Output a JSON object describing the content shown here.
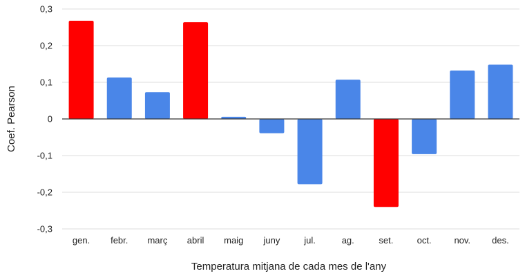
{
  "chart_data": {
    "type": "bar",
    "title": "",
    "xlabel": "Temperatura mitjana de cada mes de l'any",
    "ylabel": "Coef. Pearson",
    "categories": [
      "gen.",
      "febr.",
      "març",
      "abril",
      "maig",
      "juny",
      "jul.",
      "ag.",
      "set.",
      "oct.",
      "nov.",
      "des."
    ],
    "values": [
      0.268,
      0.113,
      0.073,
      0.264,
      0.006,
      -0.039,
      -0.178,
      0.107,
      -0.24,
      -0.096,
      0.132,
      0.148
    ],
    "bar_colors": [
      "#ff0000",
      "#4a86e8",
      "#4a86e8",
      "#ff0000",
      "#4a86e8",
      "#4a86e8",
      "#4a86e8",
      "#4a86e8",
      "#ff0000",
      "#4a86e8",
      "#4a86e8",
      "#4a86e8"
    ],
    "ylim": [
      -0.3,
      0.3
    ],
    "yticks": [
      0.3,
      0.2,
      0.1,
      0,
      -0.1,
      -0.2,
      -0.3
    ],
    "ytick_labels": [
      "0,3",
      "0,2",
      "0,1",
      "0",
      "-0,1",
      "-0,2",
      "-0,3"
    ],
    "grid": true,
    "legend": "none"
  },
  "colors": {
    "highlight": "#ff0000",
    "default_bar": "#4a86e8",
    "gridline": "#dddddd",
    "zero_line": "#333333"
  }
}
